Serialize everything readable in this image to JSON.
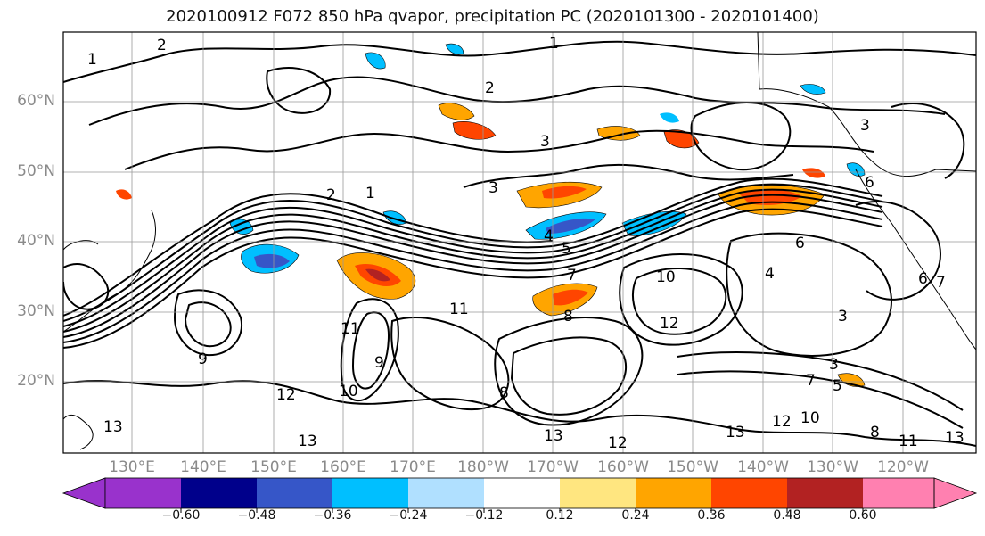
{
  "title": "2020100912 F072 850 hPa qvapor, precipitation PC (2020101300 - 2020101400)",
  "lat_labels": [
    "60°N",
    "50°N",
    "40°N",
    "30°N",
    "20°N"
  ],
  "lon_labels": [
    "130°E",
    "140°E",
    "150°E",
    "160°E",
    "170°E",
    "180°W",
    "170°W",
    "160°W",
    "150°W",
    "140°W",
    "130°W",
    "120°W"
  ],
  "contour_labels": [
    "1",
    "2",
    "1",
    "2",
    "3",
    "3",
    "3",
    "3",
    "2",
    "1",
    "4",
    "5",
    "6",
    "7",
    "8",
    "9",
    "10",
    "11",
    "12",
    "13",
    "10",
    "12",
    "13",
    "9",
    "7",
    "5",
    "3",
    "4",
    "6",
    "8",
    "11",
    "13",
    "12",
    "10",
    "8",
    "6",
    "7",
    "13",
    "12",
    "11",
    "13"
  ],
  "colorbar": {
    "ticks": [
      "−0.60",
      "−0.48",
      "−0.36",
      "−0.24",
      "−0.12",
      "0.12",
      "0.24",
      "0.36",
      "0.48",
      "0.60"
    ],
    "colors": [
      "#9932cc",
      "#00008b",
      "#3656c8",
      "#00bfff",
      "#b0e0ff",
      "#ffffff",
      "#ffe680",
      "#ffa500",
      "#ff4500",
      "#b22222",
      "#ff80b0"
    ]
  }
}
